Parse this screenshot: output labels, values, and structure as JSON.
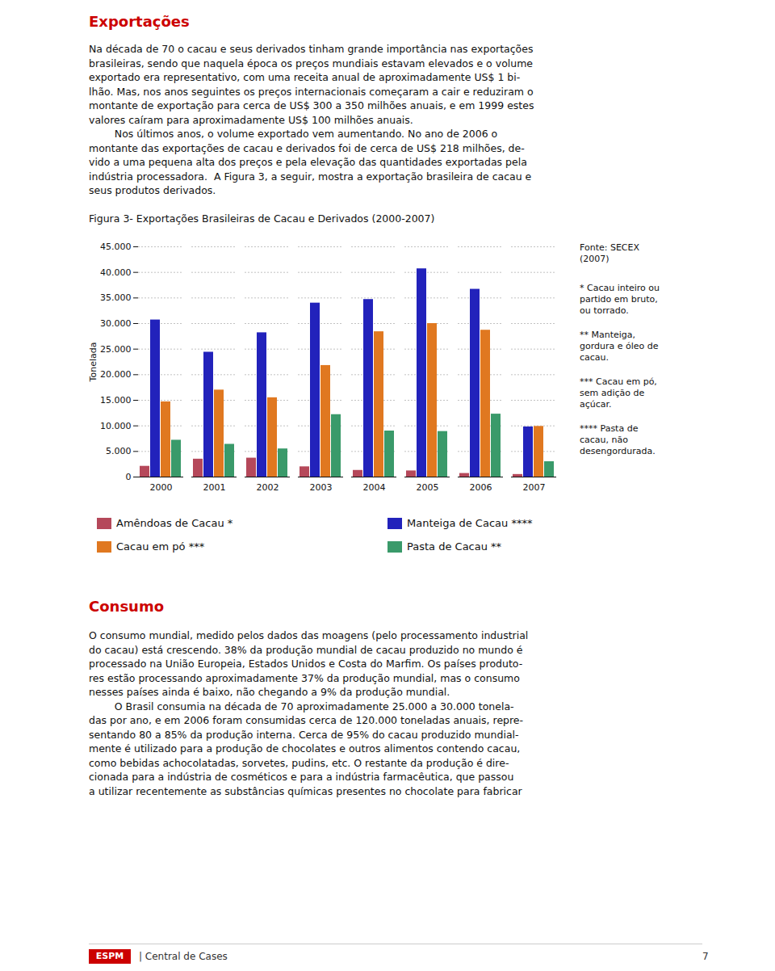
{
  "chart_data": {
    "type": "bar",
    "title": "Figura 3- Exportações Brasileiras de Cacau e Derivados (2000-2007)",
    "ylabel": "Tonelada",
    "categories": [
      "2000",
      "2001",
      "2002",
      "2003",
      "2004",
      "2005",
      "2006",
      "2007"
    ],
    "series": [
      {
        "name": "Amêndoas de Cacau *",
        "color": "#b5485a",
        "values": [
          2100,
          3500,
          3700,
          2000,
          1300,
          1200,
          700,
          500
        ]
      },
      {
        "name": "Manteiga de Cacau ****",
        "color": "#2222bb",
        "values": [
          30700,
          24400,
          28200,
          34000,
          34700,
          40700,
          36700,
          9800
        ]
      },
      {
        "name": "Cacau em pó ***",
        "color": "#e07820",
        "values": [
          14700,
          17000,
          15500,
          21800,
          28400,
          30000,
          28700,
          9900
        ]
      },
      {
        "name": "Pasta de Cacau **",
        "color": "#3a9a6a",
        "values": [
          7200,
          6400,
          5500,
          12200,
          9000,
          8900,
          12300,
          3000
        ]
      }
    ],
    "ylim": [
      0,
      45000
    ],
    "yticks": [
      0,
      {
        "value": 5000,
        "label": "5.000"
      },
      {
        "value": 10000,
        "label": "10.000"
      },
      {
        "value": 15000,
        "label": "15.000"
      },
      {
        "value": 20000,
        "label": "20.000"
      },
      {
        "value": 25000,
        "label": "25.000"
      },
      {
        "value": 30000,
        "label": "30.000"
      },
      {
        "value": 35000,
        "label": "35.000"
      },
      {
        "value": 40000,
        "label": "40.000"
      },
      {
        "value": 45000,
        "label": "45.000"
      }
    ],
    "grid": true,
    "legend": "bottom",
    "annotations": [
      "Exportações",
      "Na década de 70 o cacau e seus derivados tinham grande importância nas exportações\nbrasileiras, sendo que naquela época os preços mundiais estavam elevados e o volume\nexportado era representativo, com uma receita anual de aproximadamente US$ 1 bi-\nlhão. Mas, nos anos seguintes os preços internacionais começaram a cair e reduziram o\nmontante de exportação para cerca de US$ 300 a 350 milhões anuais, e em 1999 estes\nvalores caíram para aproximadamente US$ 100 milhões anuais.\n        Nos últimos anos, o volume exportado vem aumentando. No ano de 2006 o\nmontante das exportações de cacau e derivados foi de cerca de US$ 218 milhões, de-\nvido a uma pequena alta dos preços e pela elevação das quantidades exportadas pela\nindústria processadora.  A Figura 3, a seguir, mostra a exportação brasileira de cacau e\nseus produtos derivados.",
      "Fonte: SECEX\n(2007)",
      "* Cacau inteiro ou\npartido em bruto,\nou torrado.",
      "** Manteiga,\ngordura e óleo de\ncacau.",
      "*** Cacau em pó,\nsem adição de\naçúcar.",
      "**** Pasta de\ncacau, não\ndesengordurada.",
      "Consumo",
      "O consumo mundial, medido pelos dados das moagens (pelo processamento industrial\ndo cacau) está crescendo. 38% da produção mundial de cacau produzido no mundo é\nprocessado na União Europeia, Estados Unidos e Costa do Marfim. Os países produto-\nres estão processando aproximadamente 37% da produção mundial, mas o consumo\nnesses países ainda é baixo, não chegando a 9% da produção mundial.\n        O Brasil consumia na década de 70 aproximadamente 25.000 a 30.000 tonela-\ndas por ano, e em 2006 foram consumidas cerca de 120.000 toneladas anuais, repre-\nsentando 80 a 85% da produção interna. Cerca de 95% do cacau produzido mundial-\nmente é utilizado para a produção de chocolates e outros alimentos contendo cacau,\ncomo bebidas achocolatadas, sorvetes, pudins, etc. O restante da produção é dire-\ncionada para a indústria de cosméticos e para a indústria farmacêutica, que passou\na utilizar recentemente as substâncias químicas presentes no chocolate para fabricar",
      "ESPM",
      "| Central de Cases",
      "7"
    ]
  }
}
